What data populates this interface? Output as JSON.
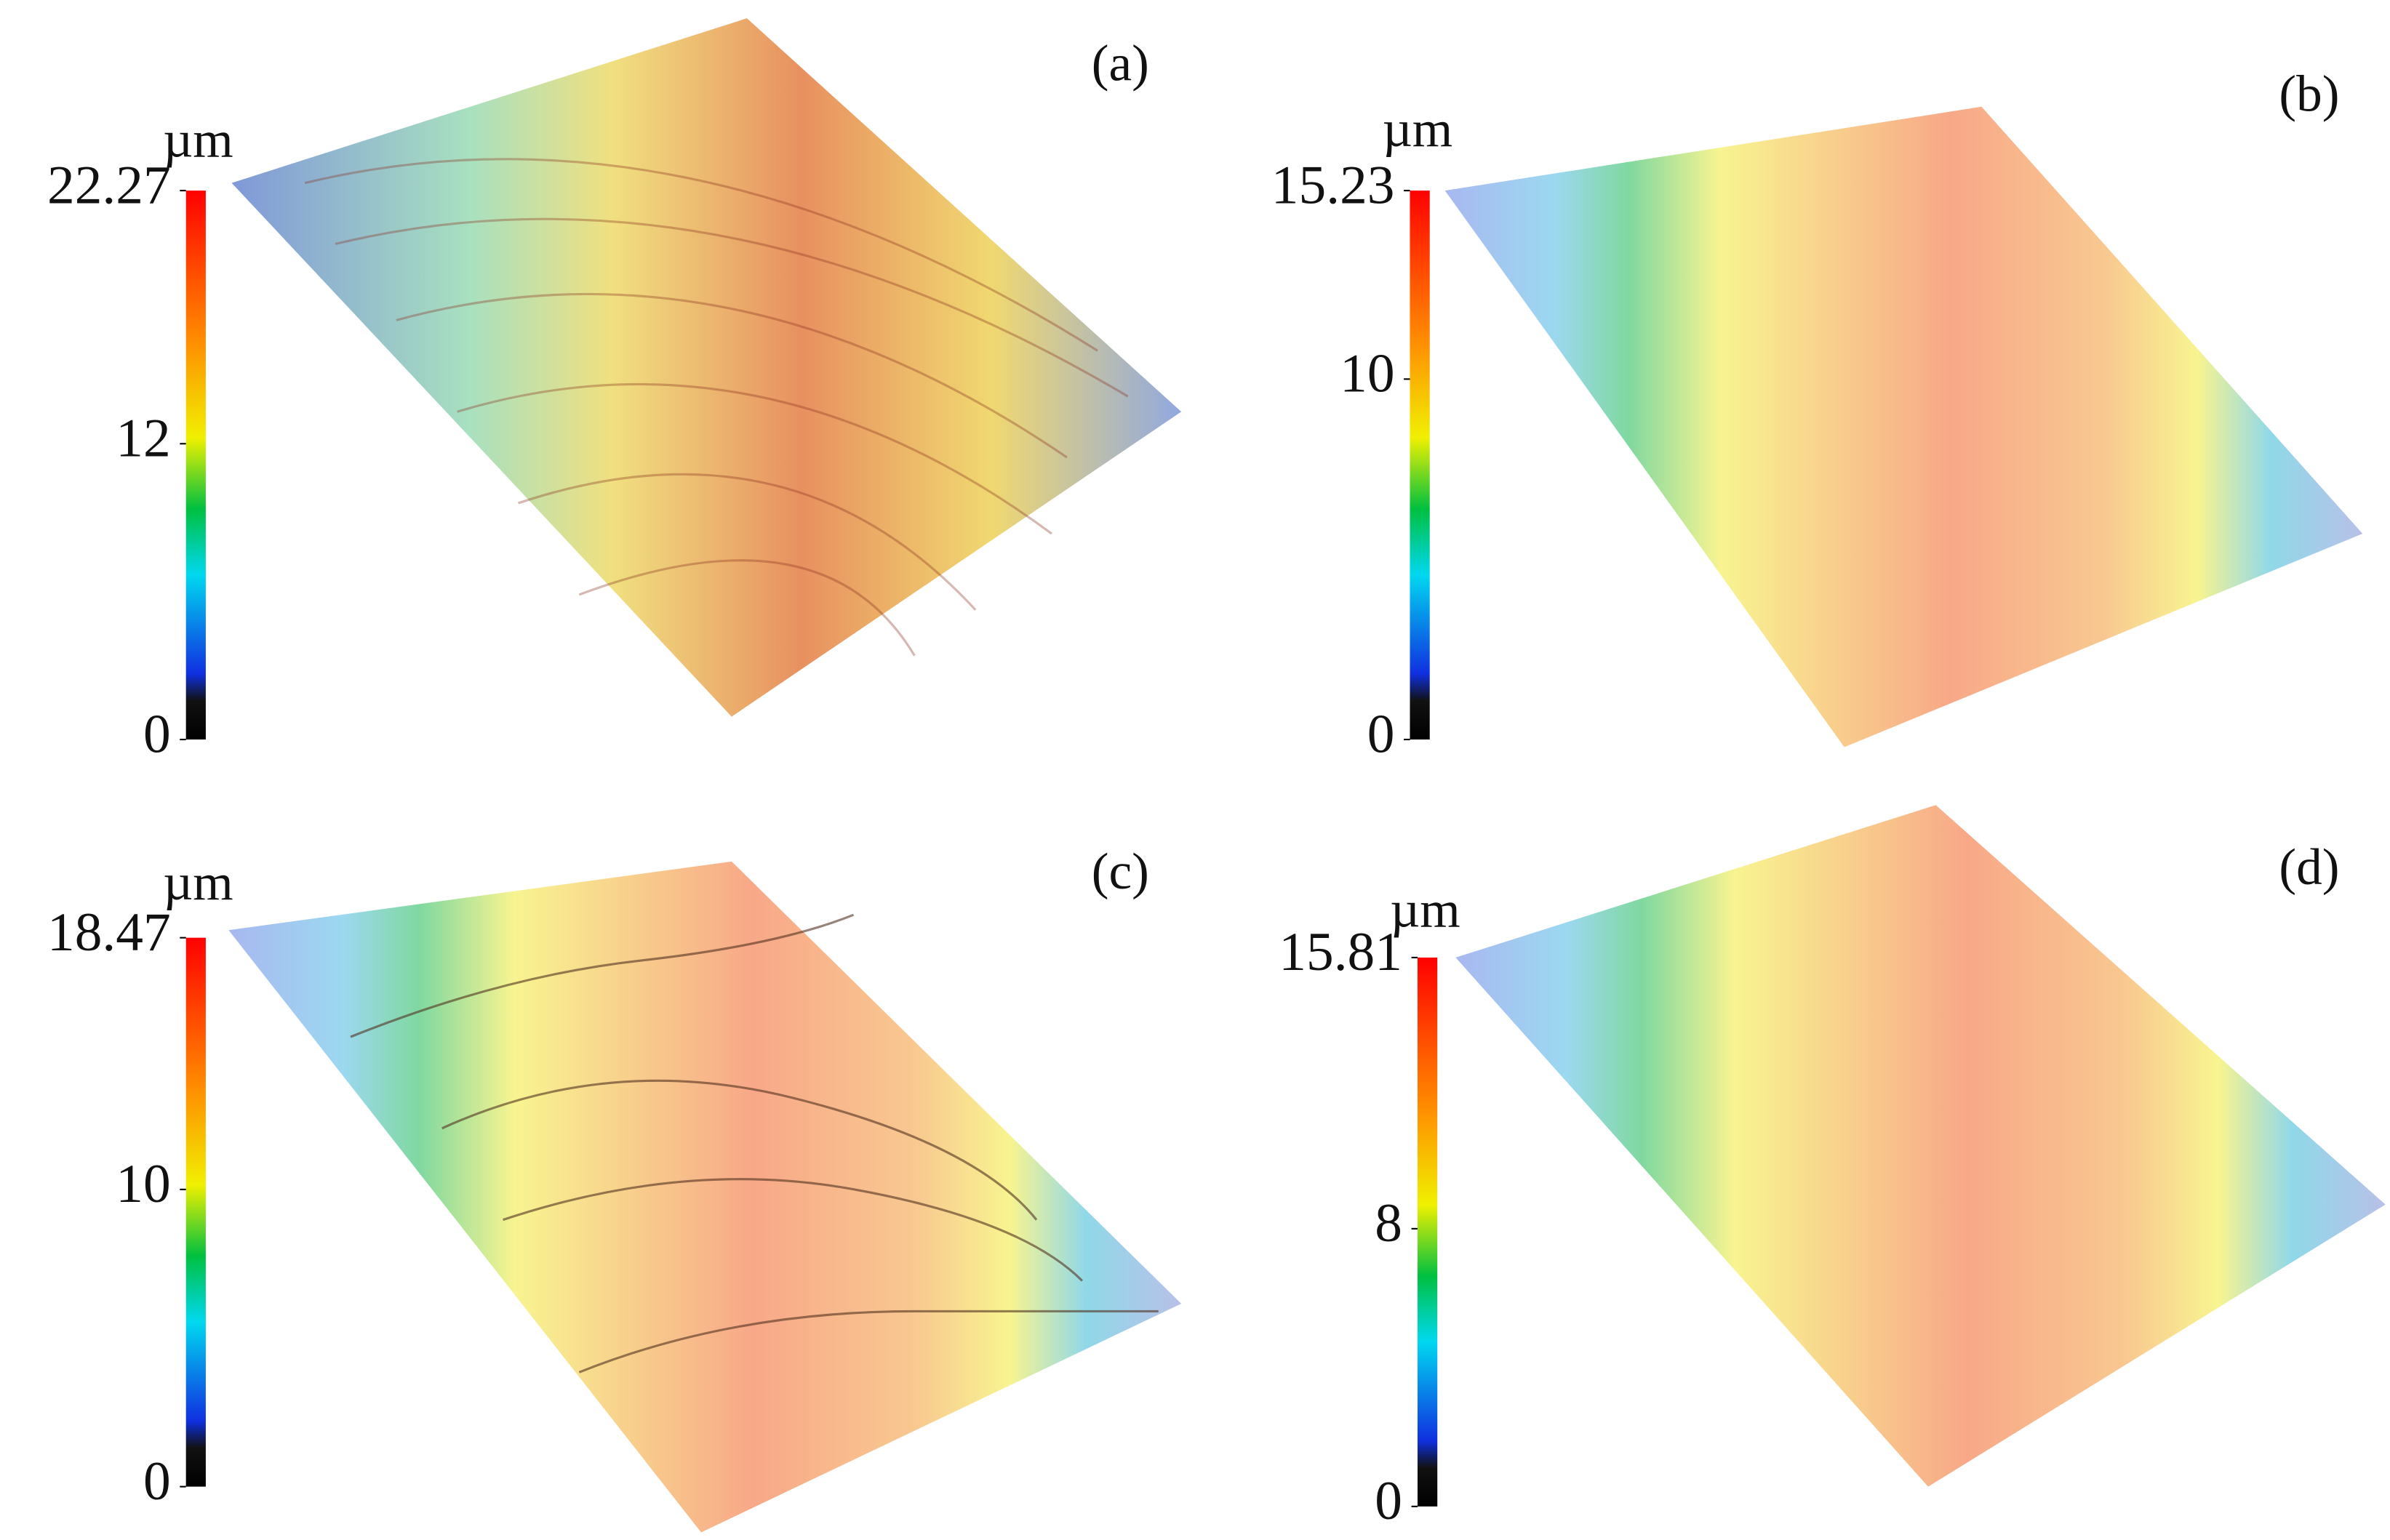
{
  "panels": [
    {
      "label": "(a)",
      "unit": "µm",
      "colorbar": {
        "ylim": [
          0,
          22.27
        ],
        "yticks": [
          0,
          12,
          22.27
        ]
      }
    },
    {
      "label": "(b)",
      "unit": "µm",
      "colorbar": {
        "ylim": [
          0,
          15.23
        ],
        "yticks": [
          0,
          10,
          15.23
        ]
      }
    },
    {
      "label": "(c)",
      "unit": "µm",
      "colorbar": {
        "ylim": [
          0,
          18.47
        ],
        "yticks": [
          0,
          10,
          18.47
        ]
      }
    },
    {
      "label": "(d)",
      "unit": "µm",
      "colorbar": {
        "ylim": [
          0,
          15.81
        ],
        "yticks": [
          0,
          8,
          15.81
        ]
      }
    }
  ]
}
